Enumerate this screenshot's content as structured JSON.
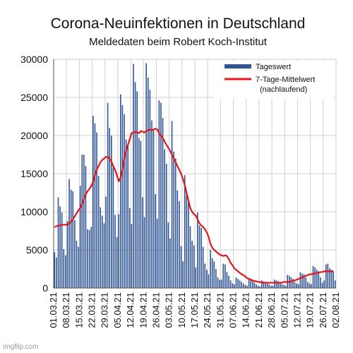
{
  "chart_data": {
    "type": "bar",
    "title": "Corona-Neuinfektionen in Deutschland",
    "subtitle": "Meldedaten beim Robert Koch-Institut",
    "xlabel": "",
    "ylabel": "",
    "ylim": [
      0,
      30000
    ],
    "yticks": [
      "0",
      "5000",
      "10000",
      "15000",
      "20000",
      "25000",
      "30000"
    ],
    "xtick_labels": [
      "01.03.21",
      "08.03.21",
      "15.03.21",
      "22.03.21",
      "29.03.21",
      "05.04.21",
      "12.04.21",
      "19.04.21",
      "26.04.21",
      "03.05.21",
      "10.05.21",
      "17.05.21",
      "24.05.21",
      "31.05.21",
      "07.06.21",
      "14.06.21",
      "21.06.21",
      "28.06.21",
      "05.07.21",
      "12.07.21",
      "19.07.21",
      "26.07.21",
      "02.08.21"
    ],
    "grid": true,
    "legend_position": "top-right",
    "series": [
      {
        "name": "Tageswert",
        "kind": "bar",
        "color": "#2f5597",
        "values": [
          4700,
          4000,
          11900,
          10700,
          9900,
          5100,
          4300,
          8800,
          14300,
          12900,
          12700,
          8900,
          6200,
          5400,
          13400,
          17500,
          17500,
          16000,
          7700,
          7600,
          8000,
          22600,
          21600,
          20400,
          14700,
          10600,
          9500,
          8500,
          12000,
          24300,
          21000,
          20000,
          15900,
          9600,
          6700,
          9700,
          25400,
          24000,
          22800,
          19500,
          18800,
          10500,
          8400,
          29400,
          27000,
          25800,
          19700,
          19300,
          11900,
          9300,
          29500,
          27600,
          26000,
          22000,
          20700,
          12300,
          9100,
          24600,
          24300,
          22300,
          18200,
          16300,
          8600,
          6500,
          21900,
          17900,
          17000,
          12800,
          11400,
          5500,
          3500,
          14800,
          12700,
          11400,
          8100,
          6200,
          5600,
          2700,
          9900,
          8200,
          7900,
          5400,
          3200,
          2400,
          1800,
          5000,
          3900,
          3500,
          2500,
          1400,
          1100,
          1100,
          3200,
          3100,
          2100,
          1600,
          1000,
          600,
          500,
          1400,
          1200,
          1000,
          800,
          600,
          400,
          300,
          1100,
          1000,
          900,
          700,
          500,
          300,
          200,
          1000,
          900,
          800,
          700,
          500,
          300,
          300,
          1100,
          1000,
          900,
          800,
          500,
          400,
          300,
          1700,
          1600,
          1400,
          1200,
          800,
          600,
          500,
          2100,
          1900,
          1800,
          1400,
          800,
          600,
          500,
          2900,
          2700,
          2400,
          2200,
          1400,
          700,
          1000,
          3100,
          3200,
          2600,
          2400,
          2200,
          1000
        ]
      },
      {
        "name": "7-Tage-Mittelwert (nachlaufend)",
        "legend_lines": [
          "7-Tage-Mittelwert",
          "(nachlaufend)"
        ],
        "kind": "line",
        "color": "#e3161b",
        "values": [
          8000,
          8100,
          8200,
          8200,
          8300,
          8300,
          8300,
          8300,
          8500,
          8700,
          9000,
          9400,
          9800,
          10200,
          10500,
          11000,
          11700,
          12300,
          12700,
          13000,
          13400,
          13900,
          14800,
          15500,
          16000,
          16500,
          16800,
          17000,
          17200,
          17200,
          17000,
          16600,
          16000,
          15500,
          14800,
          14000,
          14500,
          15500,
          17000,
          18000,
          18800,
          19500,
          20300,
          20400,
          20500,
          20400,
          20300,
          20600,
          20500,
          20400,
          20600,
          20700,
          20800,
          20700,
          20800,
          20900,
          20800,
          20300,
          20000,
          19700,
          19200,
          18800,
          18400,
          18000,
          17500,
          17000,
          16500,
          16000,
          15500,
          15000,
          14300,
          13500,
          12500,
          11500,
          10500,
          10000,
          9700,
          9500,
          9000,
          8500,
          8200,
          8000,
          7700,
          7300,
          6700,
          5800,
          5300,
          5000,
          4800,
          4600,
          4400,
          4300,
          4200,
          4300,
          4200,
          3800,
          3300,
          3000,
          2600,
          2400,
          2200,
          2000,
          1800,
          1700,
          1500,
          1300,
          1200,
          1100,
          1000,
          900,
          900,
          800,
          800,
          700,
          700,
          700,
          700,
          700,
          700,
          700,
          700,
          700,
          700,
          700,
          700,
          800,
          800,
          800,
          800,
          900,
          900,
          1000,
          1100,
          1200,
          1300,
          1400,
          1500,
          1600,
          1700,
          1800,
          1800,
          1900,
          1900,
          2000,
          2000,
          2100,
          2100,
          2200,
          2200,
          2200,
          2200,
          2200,
          2200
        ]
      }
    ]
  },
  "watermark": "imgflip.com"
}
